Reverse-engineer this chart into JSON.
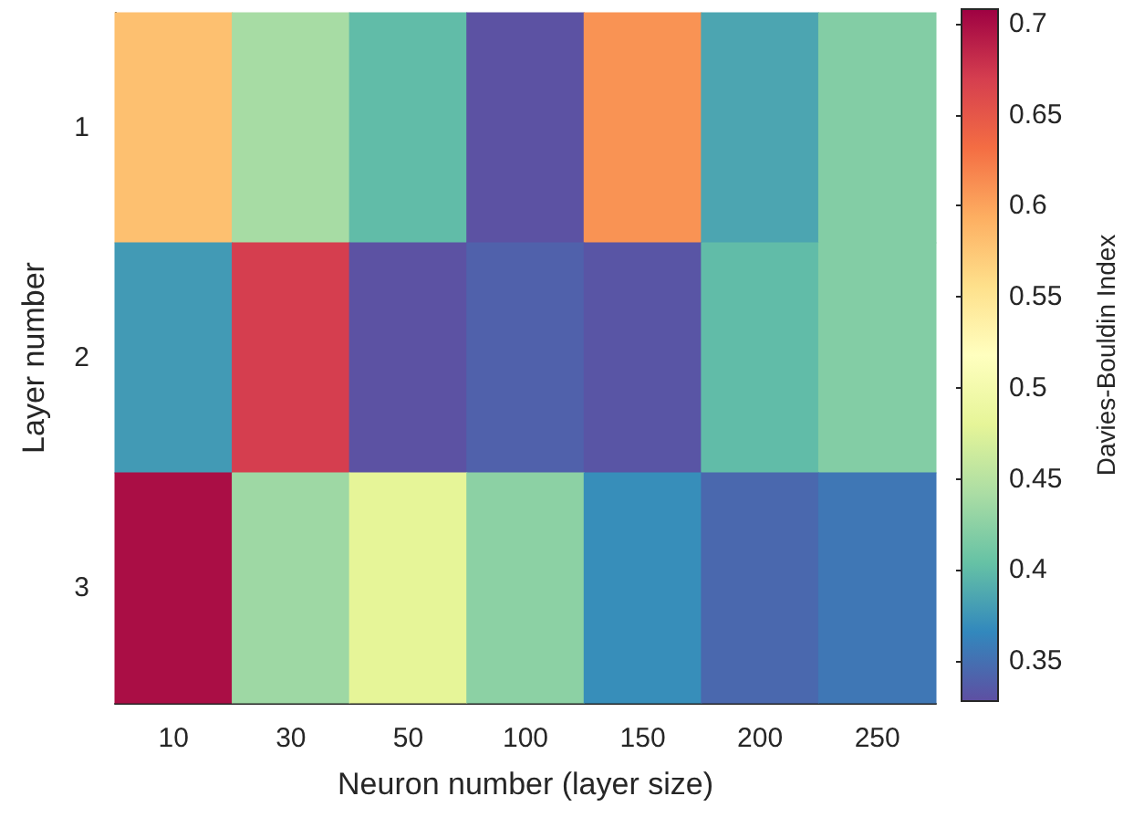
{
  "chart_data": {
    "type": "heatmap",
    "xlabel": "Neuron number (layer size)",
    "ylabel": "Layer number",
    "clabel": "Davies-Bouldin Index",
    "categories": [
      "10",
      "30",
      "50",
      "100",
      "150",
      "200",
      "250"
    ],
    "y_categories": [
      "1",
      "2",
      "3"
    ],
    "cells": [
      [
        0.58,
        0.44,
        0.4,
        0.33,
        0.61,
        0.385,
        0.42
      ],
      [
        0.378,
        0.67,
        0.33,
        0.34,
        0.332,
        0.4,
        0.42
      ],
      [
        0.7,
        0.435,
        0.48,
        0.425,
        0.37,
        0.345,
        0.355
      ]
    ],
    "clim": [
      0.328,
      0.708
    ],
    "cticks": [
      0.35,
      0.4,
      0.45,
      0.5,
      0.55,
      0.6,
      0.65,
      0.7
    ]
  }
}
